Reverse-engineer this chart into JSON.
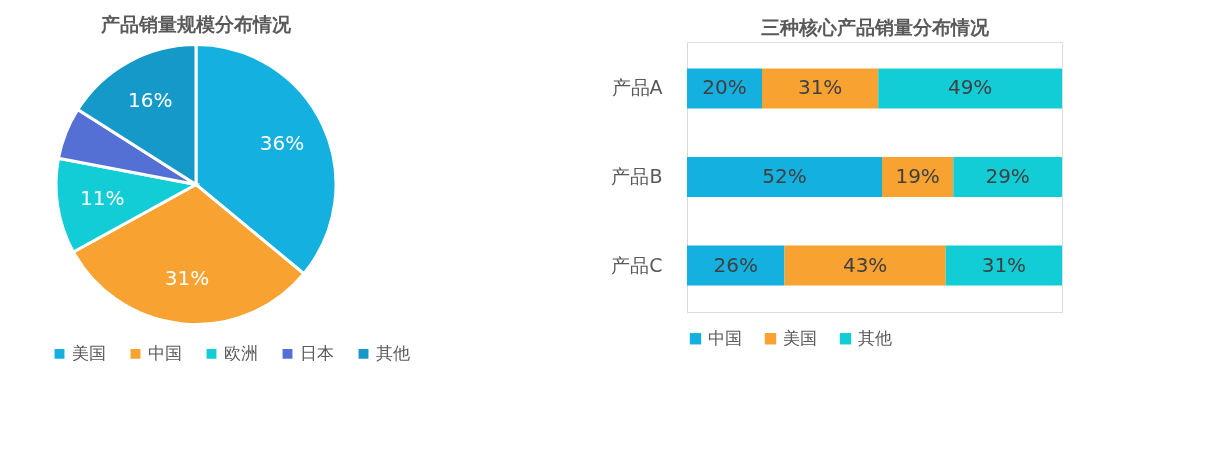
{
  "chart_data": [
    {
      "type": "pie",
      "title": "产品销量规模分布情况",
      "categories": [
        "美国",
        "中国",
        "欧洲",
        "日本",
        "其他"
      ],
      "values": [
        36,
        31,
        11,
        6,
        16
      ],
      "colors": [
        "#14b1e0",
        "#f8a232",
        "#13cdd6",
        "#5470d4",
        "#1599c9"
      ],
      "value_labels": [
        "36%",
        "31%",
        "11%",
        null,
        "16%"
      ],
      "legend": "bottom"
    },
    {
      "type": "bar",
      "title": "三种核心产品销量分布情况",
      "orientation": "horizontal",
      "stacked": true,
      "categories": [
        "产品A",
        "产品B",
        "产品C"
      ],
      "series": [
        {
          "name": "中国",
          "color": "#14b1e0",
          "values": [
            20,
            52,
            26
          ],
          "value_labels": [
            "20%",
            "52%",
            "26%"
          ]
        },
        {
          "name": "美国",
          "color": "#f8a232",
          "values": [
            31,
            19,
            43
          ],
          "value_labels": [
            "31%",
            "19%",
            "43%"
          ]
        },
        {
          "name": "其他",
          "color": "#13cdd6",
          "values": [
            49,
            29,
            31
          ],
          "value_labels": [
            "49%",
            "29%",
            "31%"
          ]
        }
      ],
      "tick_labels": "y",
      "legend": "bottom"
    }
  ]
}
